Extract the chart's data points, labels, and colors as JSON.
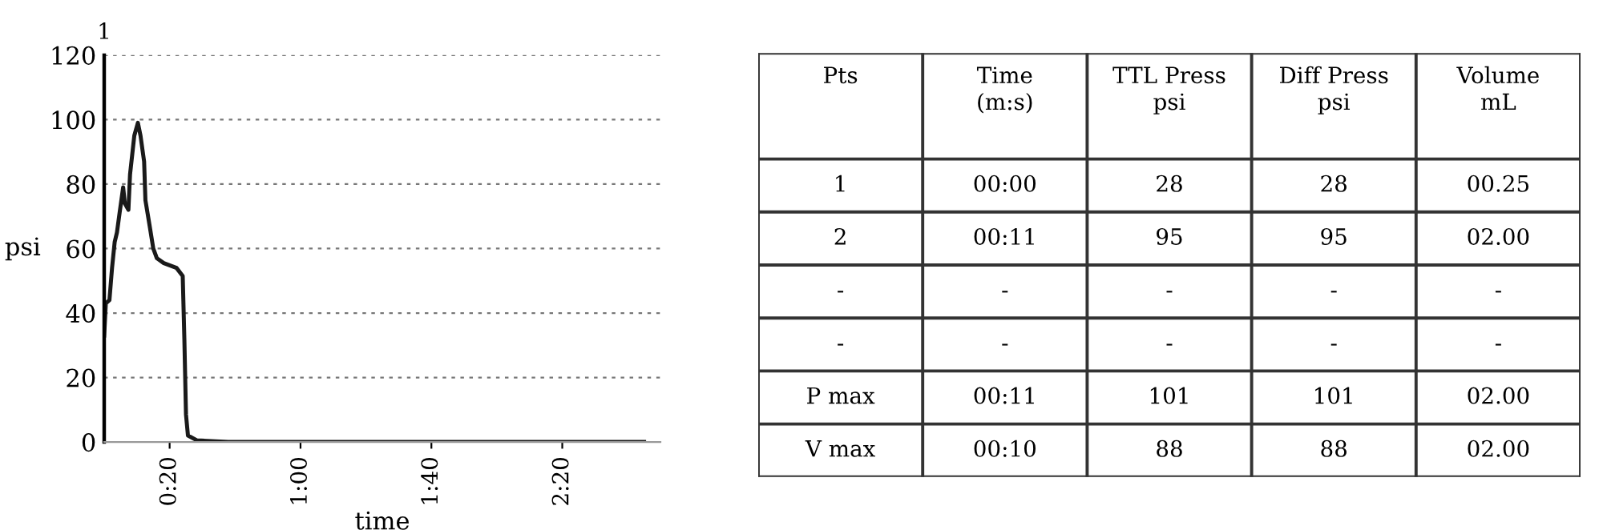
{
  "chart_data": [
    {
      "type": "line",
      "title": "1",
      "xlabel": "time",
      "ylabel": "psi",
      "color": "#1a1a1a",
      "x": [
        0,
        0.5,
        1.6,
        2.4,
        3.2,
        3.9,
        4.7,
        5.8,
        6.3,
        7.4,
        7.9,
        9.2,
        10.3,
        11.1,
        12.2,
        12.6,
        13.9,
        15,
        16.1,
        18.2,
        22.1,
        24,
        24.5,
        25,
        25.6,
        28.4,
        37.9,
        165
      ],
      "values": [
        33,
        43,
        44,
        54,
        62,
        65,
        71,
        79,
        74,
        72,
        83,
        95,
        99,
        95,
        87,
        75,
        67,
        60,
        57,
        55.5,
        54,
        51.5,
        32,
        8.5,
        2,
        0.5,
        0,
        0
      ],
      "xlim": [
        0,
        170
      ],
      "xticks": [
        {
          "value": 20,
          "label": "0:20"
        },
        {
          "value": 60,
          "label": "1:00"
        },
        {
          "value": 100,
          "label": "1:40"
        },
        {
          "value": 140,
          "label": "2:20"
        }
      ],
      "ylim": [
        0,
        120
      ],
      "yticks": [
        0,
        20,
        40,
        60,
        80,
        100,
        120
      ],
      "grid": "y"
    },
    {
      "type": "other",
      "annotations": [
        "Pts",
        "Time\n(m:s)",
        "TTL Press\npsi",
        "Diff Press\npsi",
        "Volume\nmL",
        "1",
        "00:00",
        "28",
        "28",
        "00.25",
        "2",
        "00:11",
        "95",
        "95",
        "02.00",
        "-",
        "-",
        "-",
        "-",
        "-",
        "-",
        "-",
        "-",
        "-",
        "-",
        "P max",
        "00:11",
        "101",
        "101",
        "02.00",
        "V max",
        "00:10",
        "88",
        "88",
        "02.00"
      ]
    }
  ]
}
